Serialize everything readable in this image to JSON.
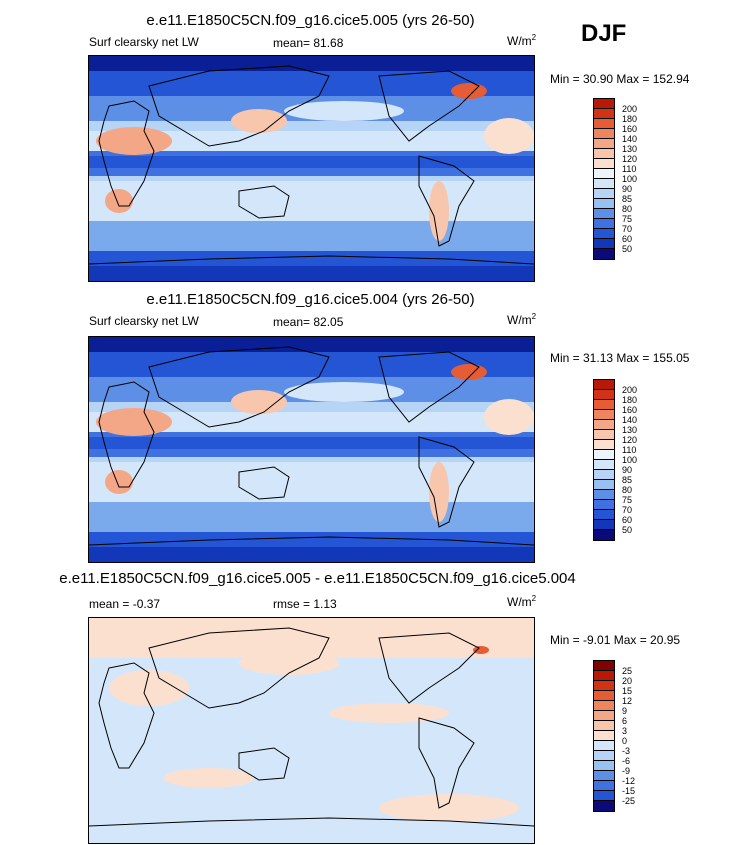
{
  "season": "DJF",
  "colorscale": {
    "abs": [
      "#d4e7fa",
      "#b6d5f6",
      "#97c1f1",
      "#7aa9ec",
      "#5d8fe7",
      "#3f72e0",
      "#2455d5",
      "#1237b8",
      "#0a1f96",
      "#0b0a78"
    ],
    "warm": [
      "#fbe0d0",
      "#f7c6ad",
      "#f3a787",
      "#ef855f",
      "#e65c35",
      "#d23216",
      "#b71808",
      "#7f0300"
    ]
  },
  "panels": [
    {
      "title": "e.e11.E1850C5CN.f09_g16.cice5.005 (yrs 26-50)",
      "left_label": "Surf clearsky net LW",
      "mean_text": "mean=  81.68",
      "units": "W/m",
      "units_sup": "2",
      "minmax": "Min =  30.90 Max = 152.94",
      "colorbar": {
        "levels": [
          "200",
          "180",
          "160",
          "140",
          "130",
          "120",
          "110",
          "100",
          "90",
          "85",
          "80",
          "75",
          "70",
          "60",
          "50"
        ],
        "colors": [
          "#b71808",
          "#d23216",
          "#e65c35",
          "#ef855f",
          "#f3a787",
          "#f7c6ad",
          "#fbe0d0",
          "#eef4fc",
          "#d4e7fa",
          "#b6d5f6",
          "#97c1f1",
          "#5d8fe7",
          "#3f72e0",
          "#2455d5",
          "#1237b8",
          "#0b0a78"
        ]
      }
    },
    {
      "title": "e.e11.E1850C5CN.f09_g16.cice5.004 (yrs 26-50)",
      "left_label": "Surf clearsky net LW",
      "mean_text": "mean=  82.05",
      "units": "W/m",
      "units_sup": "2",
      "minmax": "Min =  31.13 Max = 155.05",
      "colorbar": {
        "levels": [
          "200",
          "180",
          "160",
          "140",
          "130",
          "120",
          "110",
          "100",
          "90",
          "85",
          "80",
          "75",
          "70",
          "60",
          "50"
        ],
        "colors": [
          "#b71808",
          "#d23216",
          "#e65c35",
          "#ef855f",
          "#f3a787",
          "#f7c6ad",
          "#fbe0d0",
          "#eef4fc",
          "#d4e7fa",
          "#b6d5f6",
          "#97c1f1",
          "#5d8fe7",
          "#3f72e0",
          "#2455d5",
          "#1237b8",
          "#0b0a78"
        ]
      }
    },
    {
      "title": "e.e11.E1850C5CN.f09_g16.cice5.005 - e.e11.E1850C5CN.f09_g16.cice5.004",
      "left_label": "mean =  -0.37",
      "mean_text": "rmse =  1.13",
      "units": "W/m",
      "units_sup": "2",
      "minmax": "Min =  -9.01 Max =  20.95",
      "colorbar": {
        "levels": [
          "25",
          "20",
          "15",
          "12",
          "9",
          "6",
          "3",
          "0",
          "-3",
          "-6",
          "-9",
          "-12",
          "-15",
          "-25"
        ],
        "colors": [
          "#7f0300",
          "#b71808",
          "#d23216",
          "#e65c35",
          "#ef855f",
          "#f3a787",
          "#f7c6ad",
          "#fbe0d0",
          "#d4e7fa",
          "#b6d5f6",
          "#97c1f1",
          "#5d8fe7",
          "#3f72e0",
          "#2455d5",
          "#0b0a78"
        ]
      }
    }
  ],
  "chart_data": [
    {
      "type": "heatmap",
      "title": "e.e11.E1850C5CN.f09_g16.cice5.005 (yrs 26-50)",
      "variable": "Surf clearsky net LW",
      "units": "W/m2",
      "mean": 81.68,
      "min": 30.9,
      "max": 152.94,
      "colorbar_levels": [
        50,
        60,
        70,
        75,
        80,
        85,
        90,
        100,
        110,
        120,
        130,
        140,
        160,
        180,
        200
      ]
    },
    {
      "type": "heatmap",
      "title": "e.e11.E1850C5CN.f09_g16.cice5.004 (yrs 26-50)",
      "variable": "Surf clearsky net LW",
      "units": "W/m2",
      "mean": 82.05,
      "min": 31.13,
      "max": 155.05,
      "colorbar_levels": [
        50,
        60,
        70,
        75,
        80,
        85,
        90,
        100,
        110,
        120,
        130,
        140,
        160,
        180,
        200
      ]
    },
    {
      "type": "heatmap",
      "title": "e.e11.E1850C5CN.f09_g16.cice5.005 - e.e11.E1850C5CN.f09_g16.cice5.004",
      "units": "W/m2",
      "mean": -0.37,
      "rmse": 1.13,
      "min": -9.01,
      "max": 20.95,
      "colorbar_levels": [
        -25,
        -15,
        -12,
        -9,
        -6,
        -3,
        0,
        3,
        6,
        9,
        12,
        15,
        20,
        25
      ]
    }
  ]
}
